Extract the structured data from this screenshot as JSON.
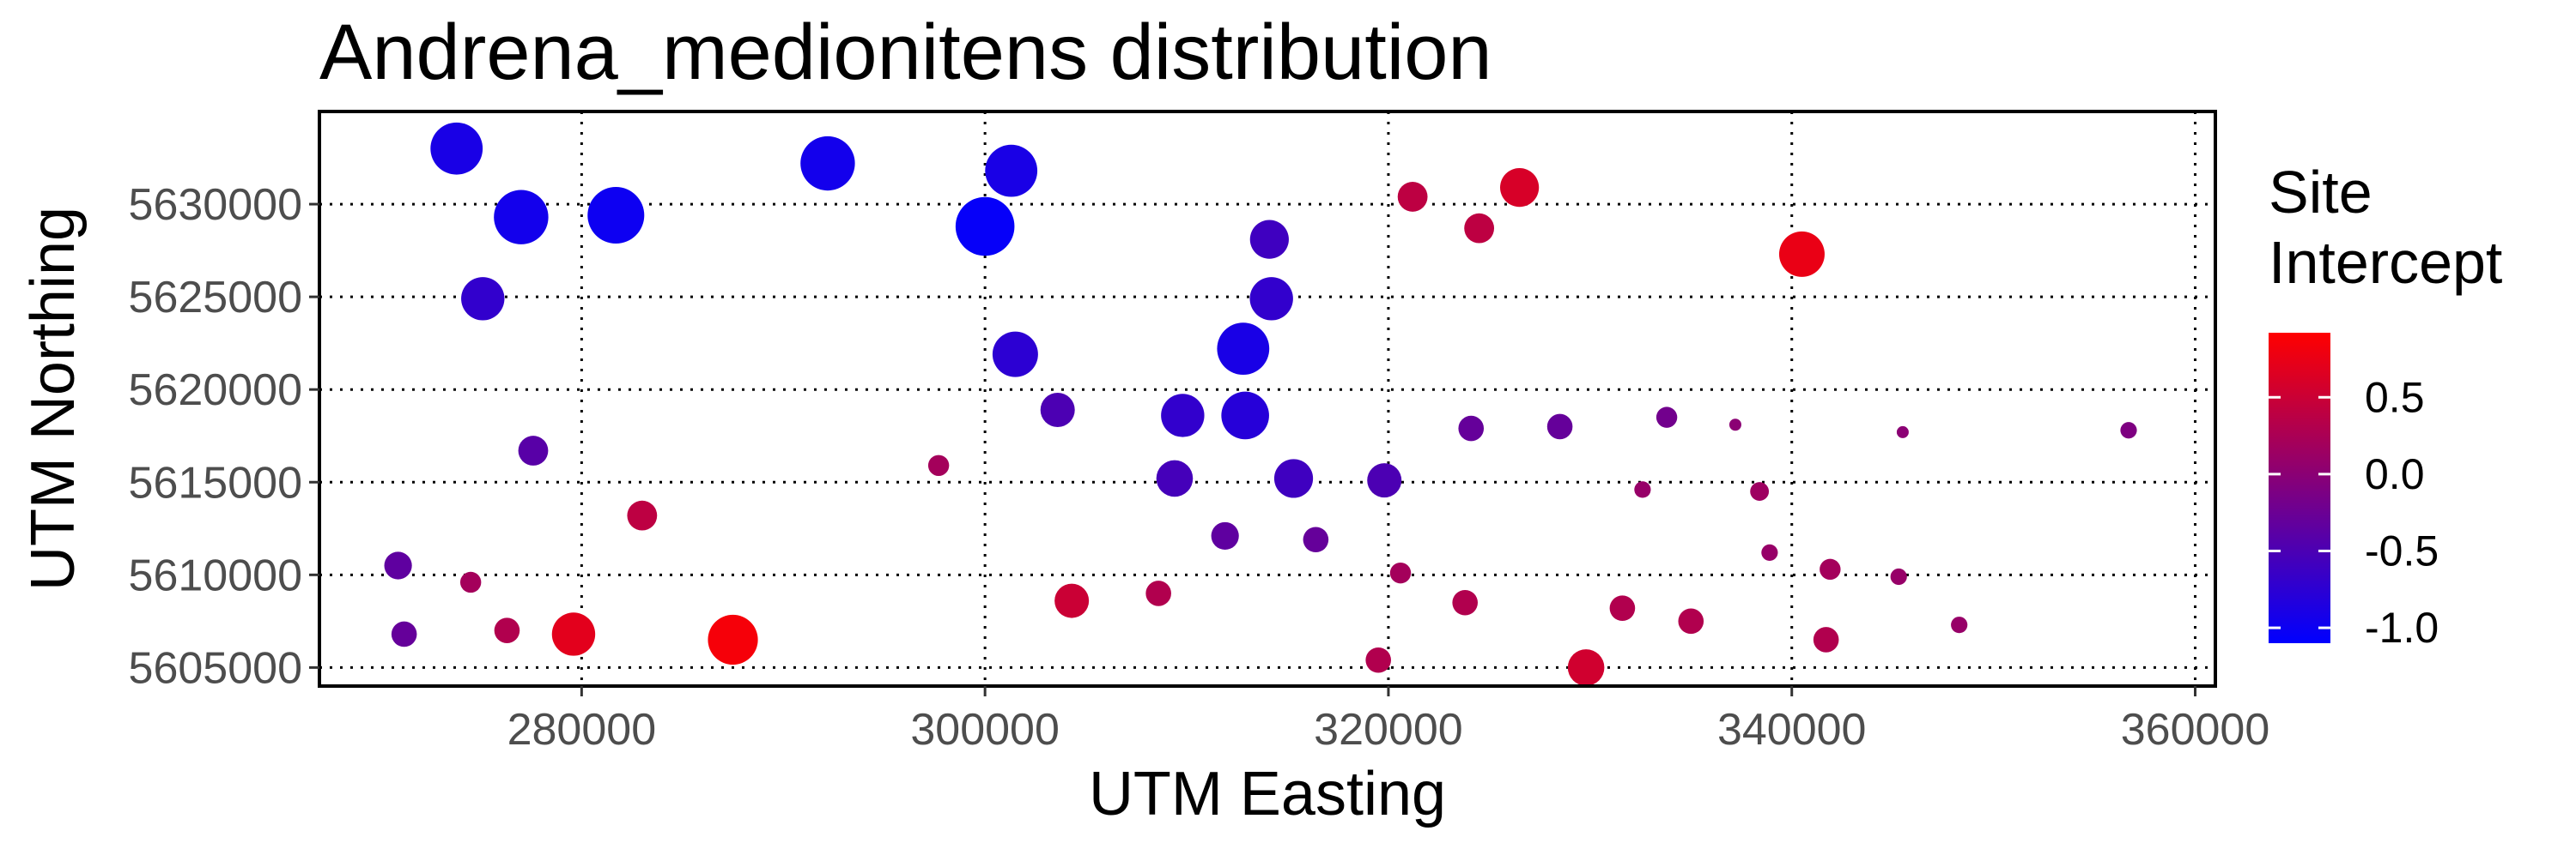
{
  "chart_data": {
    "type": "scatter",
    "title": "Andrena_medionitens distribution",
    "xlabel": "UTM Easting",
    "ylabel": "UTM Northing",
    "xlim": [
      267000,
      361000
    ],
    "ylim": [
      5604000,
      5635000
    ],
    "xticks": [
      280000,
      300000,
      320000,
      340000,
      360000
    ],
    "xtick_labels": [
      "280000",
      "300000",
      "320000",
      "340000",
      "360000"
    ],
    "yticks": [
      5605000,
      5610000,
      5615000,
      5620000,
      5625000,
      5630000
    ],
    "ytick_labels": [
      "5605000",
      "5610000",
      "5615000",
      "5620000",
      "5625000",
      "5630000"
    ],
    "grid": "dotted",
    "legend": {
      "title_lines": [
        "Site",
        "Intercept"
      ],
      "placement": "right",
      "colormap": [
        "#0000FF",
        "#FF0000"
      ],
      "range": [
        -1.1,
        0.92
      ],
      "ticks": [
        0.5,
        0.0,
        -0.5,
        -1.0
      ],
      "tick_labels": [
        "0.5",
        "0.0",
        "-0.5",
        "-1.0"
      ]
    },
    "points": [
      {
        "x": 273800,
        "y": 5633000,
        "c": -0.9
      },
      {
        "x": 292200,
        "y": 5632200,
        "c": -0.95
      },
      {
        "x": 301300,
        "y": 5631800,
        "c": -0.9
      },
      {
        "x": 277000,
        "y": 5629300,
        "c": -0.95
      },
      {
        "x": 281700,
        "y": 5629400,
        "c": -1.0
      },
      {
        "x": 300000,
        "y": 5628800,
        "c": -1.05
      },
      {
        "x": 314100,
        "y": 5628100,
        "c": -0.6
      },
      {
        "x": 321200,
        "y": 5630400,
        "c": 0.4
      },
      {
        "x": 326500,
        "y": 5630900,
        "c": 0.6
      },
      {
        "x": 324500,
        "y": 5628700,
        "c": 0.4
      },
      {
        "x": 340500,
        "y": 5627300,
        "c": 0.75
      },
      {
        "x": 275100,
        "y": 5624900,
        "c": -0.7
      },
      {
        "x": 314200,
        "y": 5624900,
        "c": -0.7
      },
      {
        "x": 301500,
        "y": 5621900,
        "c": -0.75
      },
      {
        "x": 312800,
        "y": 5622200,
        "c": -0.9
      },
      {
        "x": 303600,
        "y": 5618900,
        "c": -0.5
      },
      {
        "x": 309800,
        "y": 5618600,
        "c": -0.7
      },
      {
        "x": 312900,
        "y": 5618600,
        "c": -0.8
      },
      {
        "x": 324100,
        "y": 5617900,
        "c": -0.3
      },
      {
        "x": 328500,
        "y": 5618000,
        "c": -0.3
      },
      {
        "x": 333800,
        "y": 5618500,
        "c": -0.2
      },
      {
        "x": 337200,
        "y": 5618100,
        "c": 0.0
      },
      {
        "x": 345500,
        "y": 5617700,
        "c": 0.0
      },
      {
        "x": 356700,
        "y": 5617800,
        "c": -0.1
      },
      {
        "x": 277600,
        "y": 5616700,
        "c": -0.4
      },
      {
        "x": 297700,
        "y": 5615900,
        "c": 0.2
      },
      {
        "x": 309400,
        "y": 5615200,
        "c": -0.55
      },
      {
        "x": 315300,
        "y": 5615200,
        "c": -0.6
      },
      {
        "x": 319800,
        "y": 5615100,
        "c": -0.5
      },
      {
        "x": 332600,
        "y": 5614600,
        "c": 0.1
      },
      {
        "x": 338400,
        "y": 5614500,
        "c": 0.15
      },
      {
        "x": 283000,
        "y": 5613200,
        "c": 0.4
      },
      {
        "x": 311900,
        "y": 5612100,
        "c": -0.35
      },
      {
        "x": 316400,
        "y": 5611900,
        "c": -0.3
      },
      {
        "x": 338900,
        "y": 5611200,
        "c": 0.1
      },
      {
        "x": 270900,
        "y": 5610500,
        "c": -0.35
      },
      {
        "x": 274500,
        "y": 5609600,
        "c": 0.2
      },
      {
        "x": 320600,
        "y": 5610100,
        "c": 0.2
      },
      {
        "x": 341900,
        "y": 5610300,
        "c": 0.2
      },
      {
        "x": 345300,
        "y": 5609900,
        "c": 0.1
      },
      {
        "x": 304300,
        "y": 5608600,
        "c": 0.5
      },
      {
        "x": 308600,
        "y": 5609000,
        "c": 0.3
      },
      {
        "x": 323800,
        "y": 5608500,
        "c": 0.3
      },
      {
        "x": 331600,
        "y": 5608200,
        "c": 0.3
      },
      {
        "x": 271200,
        "y": 5606800,
        "c": -0.3
      },
      {
        "x": 276300,
        "y": 5607000,
        "c": 0.3
      },
      {
        "x": 279600,
        "y": 5606800,
        "c": 0.7
      },
      {
        "x": 287500,
        "y": 5606500,
        "c": 0.85
      },
      {
        "x": 335000,
        "y": 5607500,
        "c": 0.3
      },
      {
        "x": 348300,
        "y": 5607300,
        "c": 0.1
      },
      {
        "x": 341700,
        "y": 5606500,
        "c": 0.3
      },
      {
        "x": 319500,
        "y": 5605400,
        "c": 0.3
      },
      {
        "x": 329800,
        "y": 5605000,
        "c": 0.55
      }
    ]
  }
}
